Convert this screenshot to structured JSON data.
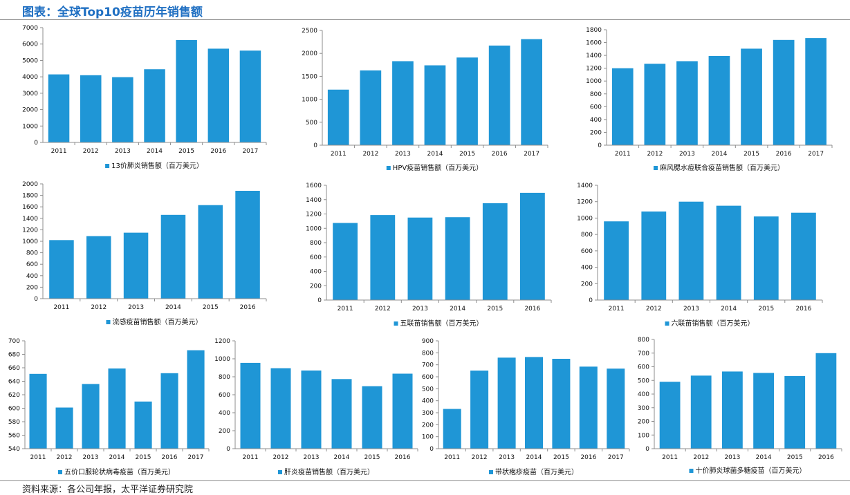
{
  "page": {
    "title": "图表：全球Top10疫苗历年销售额",
    "source": "资料来源：各公司年报，太平洋证券研究院"
  },
  "colors": {
    "bar": "#1f96d6",
    "axis": "#8c8c8c",
    "rule": "#8a8a8a"
  },
  "chart_data": [
    {
      "type": "bar",
      "categories": [
        "2011",
        "2012",
        "2013",
        "2014",
        "2015",
        "2016",
        "2017"
      ],
      "series": [
        {
          "name": "13价肺炎销售额（百万美元）",
          "values": [
            4150,
            4100,
            3980,
            4460,
            6240,
            5720,
            5600
          ]
        }
      ],
      "ylim": [
        0,
        7000
      ],
      "yticks": [
        0,
        1000,
        2000,
        3000,
        4000,
        5000,
        6000,
        7000
      ]
    },
    {
      "type": "bar",
      "categories": [
        "2011",
        "2012",
        "2013",
        "2014",
        "2015",
        "2016",
        "2017"
      ],
      "series": [
        {
          "name": "HPV疫苗销售额（百万美元）",
          "values": [
            1210,
            1630,
            1830,
            1740,
            1910,
            2170,
            2310
          ]
        }
      ],
      "ylim": [
        0,
        2500
      ],
      "yticks": [
        0,
        500,
        1000,
        1500,
        2000,
        2500
      ]
    },
    {
      "type": "bar",
      "categories": [
        "2011",
        "2012",
        "2013",
        "2014",
        "2015",
        "2016",
        "2017"
      ],
      "series": [
        {
          "name": "麻风腮水痘联合疫苗销售额（百万美元）",
          "values": [
            1200,
            1270,
            1310,
            1390,
            1505,
            1640,
            1670
          ]
        }
      ],
      "ylim": [
        0,
        1800
      ],
      "yticks": [
        0,
        200,
        400,
        600,
        800,
        1000,
        1200,
        1400,
        1600,
        1800
      ]
    },
    {
      "type": "bar",
      "categories": [
        "2011",
        "2012",
        "2013",
        "2014",
        "2015",
        "2016"
      ],
      "series": [
        {
          "name": "流感疫苗销售额（百万美元）",
          "values": [
            1020,
            1090,
            1150,
            1460,
            1630,
            1880
          ]
        }
      ],
      "ylim": [
        0,
        2000
      ],
      "yticks": [
        0,
        200,
        400,
        600,
        800,
        1000,
        1200,
        1400,
        1600,
        1800,
        2000
      ]
    },
    {
      "type": "bar",
      "categories": [
        "2011",
        "2012",
        "2013",
        "2014",
        "2015",
        "2016"
      ],
      "series": [
        {
          "name": "五联苗销售额（百万美元）",
          "values": [
            1075,
            1185,
            1150,
            1155,
            1350,
            1495
          ]
        }
      ],
      "ylim": [
        0,
        1600
      ],
      "yticks": [
        0,
        200,
        400,
        600,
        800,
        1000,
        1200,
        1400,
        1600
      ]
    },
    {
      "type": "bar",
      "categories": [
        "2011",
        "2012",
        "2013",
        "2014",
        "2015",
        "2016"
      ],
      "series": [
        {
          "name": "六联苗销售额（百万美元）",
          "values": [
            960,
            1080,
            1200,
            1150,
            1020,
            1065
          ]
        }
      ],
      "ylim": [
        0,
        1400
      ],
      "yticks": [
        0,
        200,
        400,
        600,
        800,
        1000,
        1200,
        1400
      ]
    },
    {
      "type": "bar",
      "categories": [
        "2011",
        "2012",
        "2013",
        "2014",
        "2015",
        "2016",
        "2017"
      ],
      "series": [
        {
          "name": "五价口服轮状病毒疫苗（百万美元）",
          "values": [
            651,
            601,
            636,
            659,
            610,
            652,
            686
          ]
        }
      ],
      "ylim": [
        540,
        700
      ],
      "yticks": [
        540,
        560,
        580,
        600,
        620,
        640,
        660,
        680,
        700
      ]
    },
    {
      "type": "bar",
      "categories": [
        "2011",
        "2012",
        "2013",
        "2014",
        "2015",
        "2016"
      ],
      "series": [
        {
          "name": "肝炎疫苗销售额（百万美元）",
          "values": [
            955,
            895,
            870,
            775,
            695,
            835
          ]
        }
      ],
      "ylim": [
        0,
        1200
      ],
      "yticks": [
        0,
        200,
        400,
        600,
        800,
        1000,
        1200
      ]
    },
    {
      "type": "bar",
      "categories": [
        "2011",
        "2012",
        "2013",
        "2014",
        "2015",
        "2016",
        "2017"
      ],
      "series": [
        {
          "name": "带状疱疹疫苗（百万美元）",
          "values": [
            332,
            652,
            760,
            765,
            750,
            685,
            668
          ]
        }
      ],
      "ylim": [
        0,
        900
      ],
      "yticks": [
        0,
        100,
        200,
        300,
        400,
        500,
        600,
        700,
        800,
        900
      ]
    },
    {
      "type": "bar",
      "categories": [
        "2011",
        "2012",
        "2013",
        "2014",
        "2015",
        "2016"
      ],
      "series": [
        {
          "name": "十价肺炎球菌多糖疫苗（百万美元）",
          "values": [
            490,
            535,
            565,
            555,
            532,
            700
          ]
        }
      ],
      "ylim": [
        0,
        800
      ],
      "yticks": [
        0,
        100,
        200,
        300,
        400,
        500,
        600,
        700,
        800
      ]
    }
  ]
}
